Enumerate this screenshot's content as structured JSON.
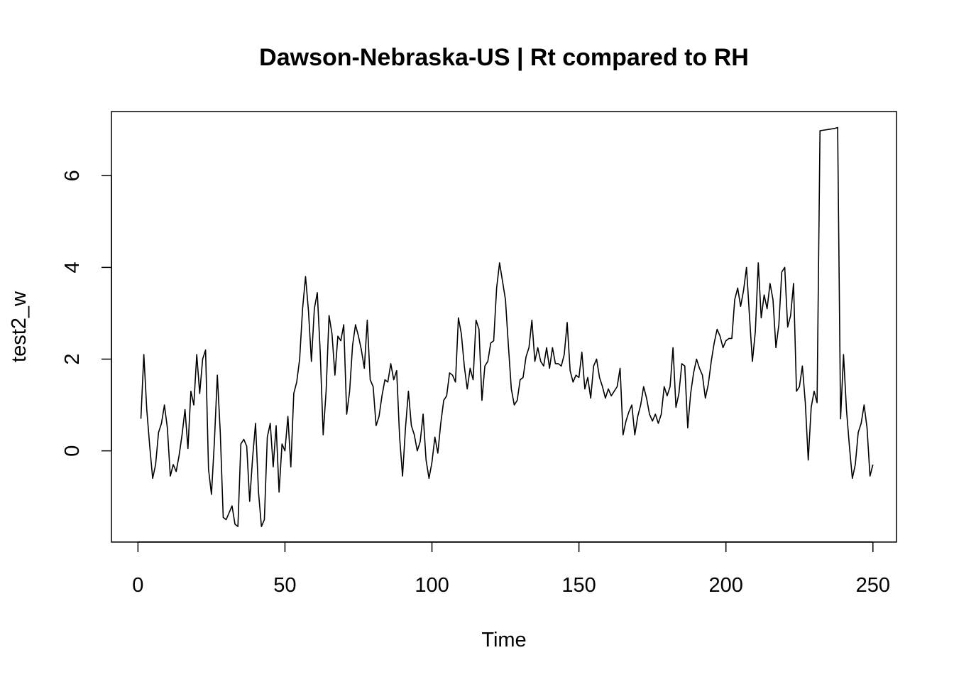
{
  "chart_data": {
    "type": "line",
    "title": "Dawson-Nebraska-US | Rt compared to RH",
    "xlabel": "Time",
    "ylabel": "test2_w",
    "xlim": [
      1,
      248
    ],
    "ylim": [
      -1.64,
      7.05
    ],
    "grid": false,
    "x_ticks": [
      0,
      50,
      100,
      150,
      200,
      250
    ],
    "x_tick_labels": [
      "0",
      "50",
      "100",
      "150",
      "200",
      "250"
    ],
    "y_ticks": [
      0,
      2,
      4,
      6
    ],
    "y_tick_labels": [
      "0",
      "2",
      "4",
      "6"
    ],
    "series": [
      {
        "values": [
          0.7,
          2.1,
          0.9,
          0.1,
          -0.6,
          -0.3,
          0.4,
          0.6,
          1.0,
          0.5,
          -0.55,
          -0.3,
          -0.45,
          -0.1,
          0.35,
          0.9,
          0.05,
          1.3,
          1.0,
          2.1,
          1.25,
          2.0,
          2.2,
          -0.4,
          -0.95,
          0.2,
          1.65,
          0.4,
          -1.45,
          -1.5,
          -1.35,
          -1.2,
          -1.6,
          -1.65,
          0.15,
          0.25,
          0.1,
          -1.1,
          -0.15,
          0.6,
          -0.9,
          -1.65,
          -1.5,
          0.3,
          0.6,
          -0.35,
          0.55,
          -0.9,
          0.15,
          0.0,
          0.75,
          -0.35,
          1.25,
          1.5,
          2.0,
          3.1,
          3.8,
          3.05,
          1.95,
          3.1,
          3.45,
          2.15,
          0.35,
          1.3,
          2.95,
          2.55,
          1.65,
          2.5,
          2.4,
          2.75,
          0.8,
          1.3,
          2.3,
          2.75,
          2.5,
          2.2,
          1.8,
          2.85,
          1.55,
          1.4,
          0.55,
          0.75,
          1.2,
          1.55,
          1.5,
          1.9,
          1.55,
          1.75,
          0.3,
          -0.55,
          0.5,
          1.3,
          0.55,
          0.35,
          0.0,
          0.2,
          0.8,
          -0.2,
          -0.6,
          -0.25,
          0.3,
          -0.05,
          0.6,
          1.1,
          1.2,
          1.7,
          1.65,
          1.5,
          2.9,
          2.55,
          1.85,
          1.35,
          1.8,
          1.55,
          2.85,
          2.65,
          1.1,
          1.85,
          1.95,
          2.35,
          2.4,
          3.55,
          4.1,
          3.7,
          3.3,
          2.3,
          1.35,
          1.0,
          1.1,
          1.55,
          1.6,
          2.05,
          2.25,
          2.85,
          1.95,
          2.25,
          1.95,
          1.85,
          2.25,
          1.8,
          2.25,
          1.9,
          1.9,
          1.85,
          2.1,
          2.8,
          1.75,
          1.5,
          1.65,
          1.6,
          2.15,
          1.35,
          1.6,
          1.15,
          1.85,
          2.0,
          1.6,
          1.4,
          1.15,
          1.35,
          1.2,
          1.3,
          1.4,
          1.8,
          0.35,
          0.65,
          0.85,
          1.0,
          0.35,
          0.75,
          1.0,
          1.4,
          1.15,
          0.8,
          0.65,
          0.8,
          0.6,
          0.8,
          1.4,
          1.2,
          1.4,
          2.25,
          0.95,
          1.25,
          1.9,
          1.85,
          0.5,
          1.25,
          1.7,
          2.0,
          1.8,
          1.65,
          1.15,
          1.45,
          1.95,
          2.35,
          2.65,
          2.5,
          2.25,
          2.4,
          2.45,
          2.45,
          3.3,
          3.55,
          3.15,
          3.5,
          4.0,
          2.95,
          1.95,
          2.6,
          4.1,
          2.9,
          3.4,
          3.1,
          3.65,
          3.3,
          2.25,
          2.75,
          3.9,
          4.0,
          2.7,
          2.95,
          3.65,
          1.3,
          1.4,
          1.85,
          1.05,
          -0.2,
          0.95,
          1.3,
          1.05,
          6.98,
          6.99,
          7.0,
          7.01,
          7.02,
          7.03,
          7.05,
          0.7,
          2.1,
          0.9,
          0.1,
          -0.6,
          -0.3,
          0.4,
          0.6,
          1.0,
          0.5,
          -0.55,
          -0.3
        ]
      }
    ]
  }
}
